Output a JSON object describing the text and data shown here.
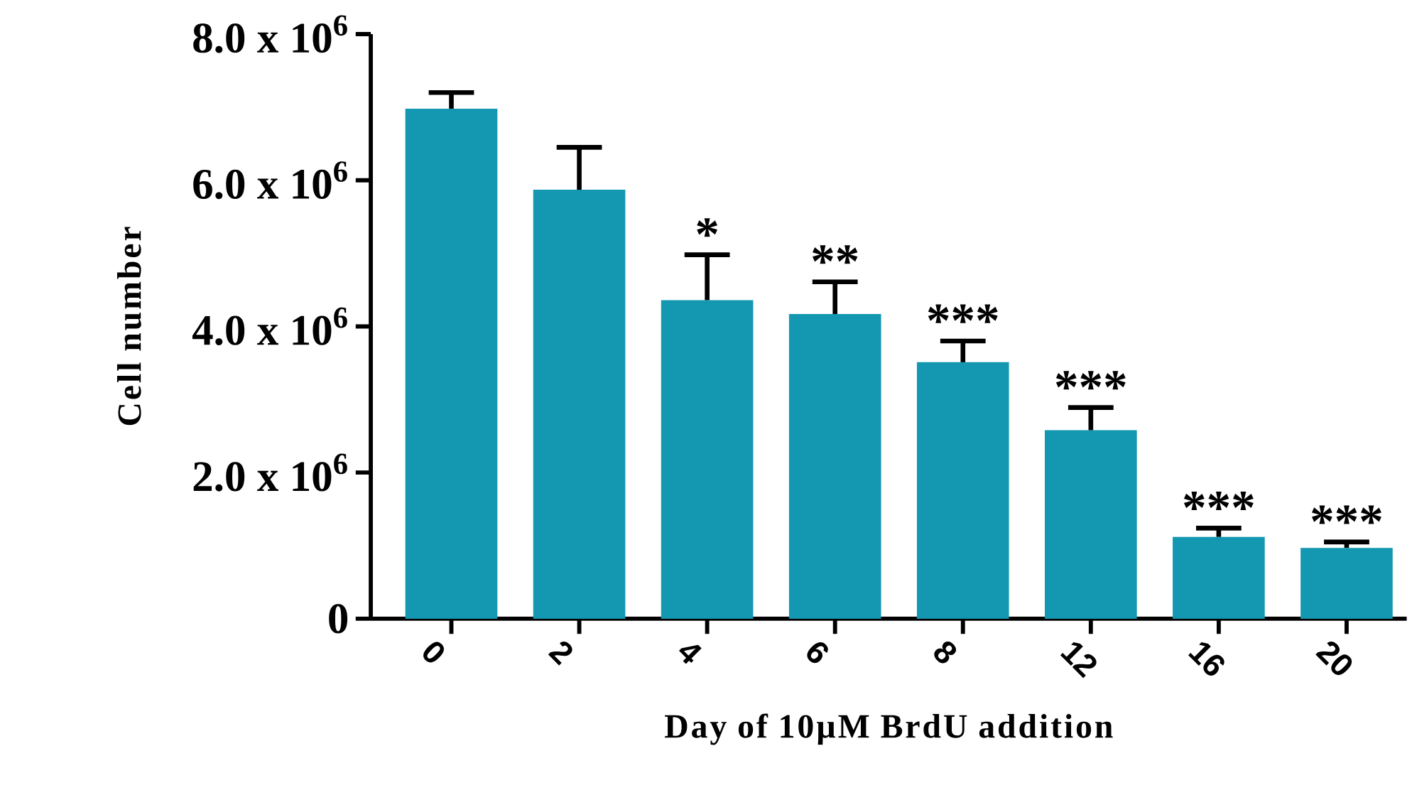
{
  "chart_data": {
    "type": "bar",
    "xlabel": "Day of 10µM BrdU addition",
    "ylabel": "Cell number",
    "categories": [
      "0",
      "2",
      "4",
      "6",
      "8",
      "12",
      "16",
      "20"
    ],
    "values": [
      6980000,
      5870000,
      4360000,
      4170000,
      3510000,
      2580000,
      1120000,
      970000
    ],
    "color": "#1498b2",
    "errors": [
      [
        6980000,
        7200000
      ],
      [
        5870000,
        6450000
      ],
      [
        4360000,
        4980000
      ],
      [
        4170000,
        4610000
      ],
      [
        3510000,
        3800000
      ],
      [
        2580000,
        2890000
      ],
      [
        1120000,
        1240000
      ],
      [
        970000,
        1050000
      ]
    ],
    "ylim": [
      0,
      8000000
    ],
    "yticks": [
      0,
      {
        "value": 2000000,
        "label": "2.0 x 10$^{6}$"
      },
      {
        "value": 4000000,
        "label": "4.0 x 10$^{6}$"
      },
      {
        "value": 6000000,
        "label": "6.0 x 10$^{6}$"
      },
      {
        "value": 8000000,
        "label": "8.0 x 10$^{6}$"
      }
    ],
    "annotations": [
      {
        "text": "*",
        "x": "4",
        "y": 4980000
      },
      {
        "text": "**",
        "x": "6",
        "y": 4610000
      },
      {
        "text": "***",
        "x": "8",
        "y": 3800000
      },
      {
        "text": "***",
        "x": "12",
        "y": 2890000
      },
      {
        "text": "***",
        "x": "16",
        "y": 1240000
      },
      {
        "text": "***",
        "x": "20",
        "y": 1050000
      }
    ]
  }
}
